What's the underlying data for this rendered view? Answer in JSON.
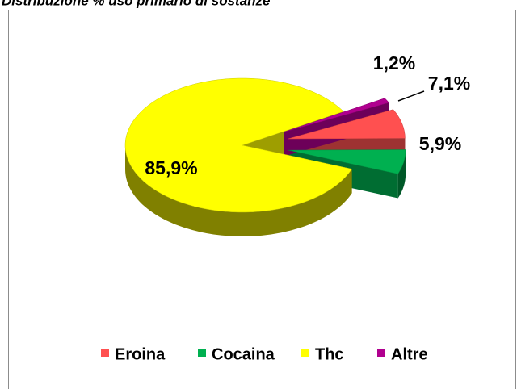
{
  "chart_data": {
    "type": "pie",
    "title": "Distribuzione % uso primario di sostanze",
    "categories": [
      "Eroina",
      "Cocaina",
      "Thc",
      "Altre"
    ],
    "values": [
      7.1,
      5.9,
      85.9,
      1.2
    ],
    "value_labels": [
      "7,1%",
      "5,9%",
      "85,9%",
      "1,2%"
    ],
    "colors": [
      "#ff5050",
      "#00b050",
      "#ffff00",
      "#b0008f"
    ],
    "legend": "bottom"
  }
}
